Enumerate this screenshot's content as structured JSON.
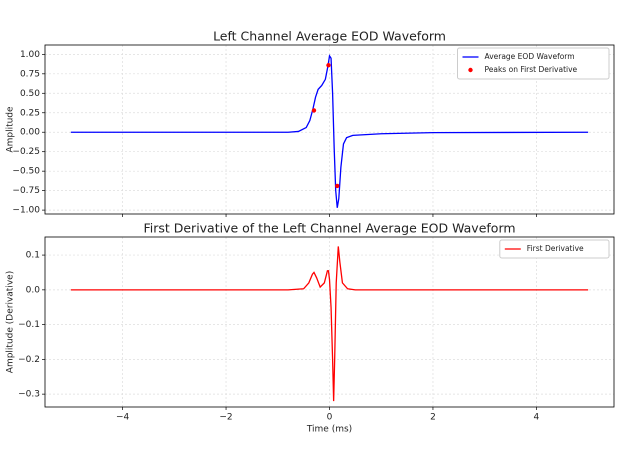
{
  "chart_data": [
    {
      "type": "line",
      "title": "Left Channel Average EOD Waveform",
      "ylabel": "Amplitude",
      "xlim": [
        -5.5,
        5.5
      ],
      "ylim": [
        -1.05,
        1.12
      ],
      "xticks": [
        {
          "value": -4,
          "label": "−4"
        },
        {
          "value": -2,
          "label": "−2"
        },
        0,
        2,
        4
      ],
      "xtick_labels": false,
      "yticks": [
        {
          "value": 1,
          "label": "1.00"
        },
        {
          "value": 0.75,
          "label": "0.75"
        },
        {
          "value": 0.5,
          "label": "0.50"
        },
        {
          "value": 0.25,
          "label": "0.25"
        },
        {
          "value": 0,
          "label": "0.00"
        },
        {
          "value": -0.25,
          "label": "−0.25"
        },
        {
          "value": -0.5,
          "label": "−0.50"
        },
        {
          "value": -0.75,
          "label": "−0.75"
        },
        {
          "value": -1,
          "label": "−1.00"
        }
      ],
      "grid": true,
      "legend": "upper right",
      "series": [
        {
          "name": "Average EOD Waveform",
          "color": "#0000ff",
          "type": "line",
          "x": [
            -5,
            -0.8,
            -0.6,
            -0.45,
            -0.38,
            -0.32,
            -0.27,
            -0.22,
            -0.15,
            -0.08,
            -0.03,
            0,
            0.03,
            0.06,
            0.09,
            0.12,
            0.15,
            0.18,
            0.22,
            0.27,
            0.33,
            0.45,
            1,
            2,
            5
          ],
          "values": [
            0,
            0,
            0.01,
            0.06,
            0.15,
            0.3,
            0.45,
            0.55,
            0.6,
            0.68,
            0.85,
            0.98,
            0.95,
            0.5,
            -0.2,
            -0.75,
            -0.97,
            -0.85,
            -0.45,
            -0.15,
            -0.07,
            -0.04,
            -0.02,
            -0.005,
            0
          ]
        },
        {
          "name": "Peaks on First Derivative",
          "color": "#ff0000",
          "type": "scatter",
          "x": [
            -0.3,
            -0.02,
            0.15
          ],
          "values": [
            0.28,
            0.86,
            -0.69
          ]
        }
      ]
    },
    {
      "type": "line",
      "title": "First Derivative of the Left Channel Average EOD Waveform",
      "xlabel": "Time (ms)",
      "ylabel": "Amplitude (Derivative)",
      "xlim": [
        -5.5,
        5.5
      ],
      "ylim": [
        -0.337,
        0.152
      ],
      "xticks": [
        {
          "value": -4,
          "label": "−4"
        },
        {
          "value": -2,
          "label": "−2"
        },
        0,
        2,
        4
      ],
      "xtick_labels": true,
      "yticks": [
        0.1,
        {
          "value": 0,
          "label": "0.0"
        },
        {
          "value": -0.1,
          "label": "−0.1"
        },
        {
          "value": -0.2,
          "label": "−0.2"
        },
        {
          "value": -0.3,
          "label": "−0.3"
        }
      ],
      "grid": true,
      "legend": "upper right",
      "series": [
        {
          "name": "First Derivative",
          "color": "#ff0000",
          "type": "line",
          "x": [
            -5,
            -0.8,
            -0.5,
            -0.4,
            -0.33,
            -0.3,
            -0.25,
            -0.18,
            -0.1,
            -0.04,
            -0.02,
            0,
            0.03,
            0.06,
            0.08,
            0.1,
            0.13,
            0.17,
            0.2,
            0.25,
            0.35,
            0.5,
            5
          ],
          "values": [
            0,
            0,
            0.003,
            0.02,
            0.045,
            0.05,
            0.035,
            0.008,
            0.02,
            0.055,
            0.055,
            0.03,
            -0.05,
            -0.2,
            -0.32,
            -0.2,
            0.02,
            0.125,
            0.08,
            0.02,
            0.003,
            0,
            0
          ]
        }
      ]
    }
  ]
}
